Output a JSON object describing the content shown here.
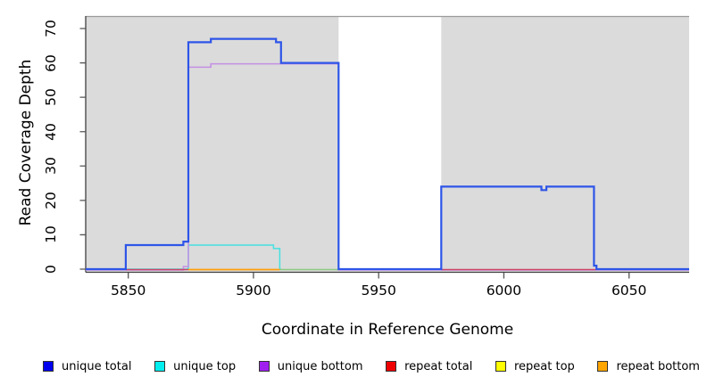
{
  "chart_data": {
    "type": "line",
    "subtype": "step-coverage",
    "title": "",
    "xlabel": "Coordinate in Reference Genome",
    "ylabel": "Read Coverage Depth",
    "xlim": [
      5833,
      6074
    ],
    "ylim": [
      0,
      73
    ],
    "x_ticks": [
      5850,
      5900,
      5950,
      6000,
      6050
    ],
    "y_ticks": [
      0,
      10,
      20,
      30,
      40,
      50,
      60,
      70
    ],
    "grid": "off",
    "plot_bg": "#DBDBDB",
    "no_data_region": {
      "from": 5934,
      "to": 5975,
      "color": "#FFFFFF"
    },
    "series": [
      {
        "name": "unique total",
        "color": "#0000EE",
        "plot_color": "#2E55E8",
        "segments": [
          [
            [
              5833,
              0
            ],
            [
              5849,
              7
            ],
            [
              5872,
              8
            ],
            [
              5874,
              66
            ],
            [
              5883,
              67
            ],
            [
              5909,
              66
            ],
            [
              5911,
              60
            ],
            [
              5934,
              0
            ],
            [
              5975,
              24
            ],
            [
              6015,
              23
            ],
            [
              6017,
              24
            ],
            [
              6036,
              1
            ],
            [
              6037,
              0
            ],
            [
              6074,
              0
            ]
          ]
        ]
      },
      {
        "name": "unique top",
        "color": "#00EEEE",
        "plot_color": "#45E0E0",
        "segments": [
          [
            [
              5833,
              0
            ],
            [
              5874,
              7
            ],
            [
              5908,
              6
            ],
            [
              5910.5,
              0
            ],
            [
              5911,
              0
            ]
          ]
        ]
      },
      {
        "name": "unique bottom",
        "color": "#A020F0",
        "plot_color": "#C48FE3",
        "segments": [
          [
            [
              5833,
              0
            ],
            [
              5872,
              1
            ],
            [
              5874,
              59
            ],
            [
              5883,
              60
            ],
            [
              5934,
              0
            ],
            [
              6074,
              0
            ]
          ]
        ]
      },
      {
        "name": "repeat total",
        "color": "#EE0000",
        "plot_color": "#CC4466",
        "segments": [
          [
            [
              5849,
              0
            ],
            [
              5874,
              0
            ]
          ],
          [
            [
              5975,
              0
            ],
            [
              6037,
              0
            ]
          ]
        ]
      },
      {
        "name": "repeat top",
        "color": "#FFFF00",
        "plot_color": "#8CCA82",
        "segments": [
          [
            [
              5910.5,
              0
            ],
            [
              5934,
              0
            ]
          ]
        ]
      },
      {
        "name": "repeat bottom",
        "color": "#FFA500",
        "plot_color": "#FF9D0A",
        "segments": [
          [
            [
              5874,
              0
            ],
            [
              5910.5,
              0
            ]
          ]
        ]
      }
    ]
  },
  "legend": {
    "items": [
      {
        "label": "unique total",
        "color": "#0000EE"
      },
      {
        "label": "unique top",
        "color": "#00EEEE"
      },
      {
        "label": "unique bottom",
        "color": "#A020F0"
      },
      {
        "label": "repeat total",
        "color": "#EE0000"
      },
      {
        "label": "repeat top",
        "color": "#FFFF00"
      },
      {
        "label": "repeat bottom",
        "color": "#FFA500"
      }
    ]
  },
  "colors": {
    "axis_line": "#404040",
    "tick_mark": "#555555",
    "top_border": "#9A9A9A",
    "text": "#000000"
  }
}
